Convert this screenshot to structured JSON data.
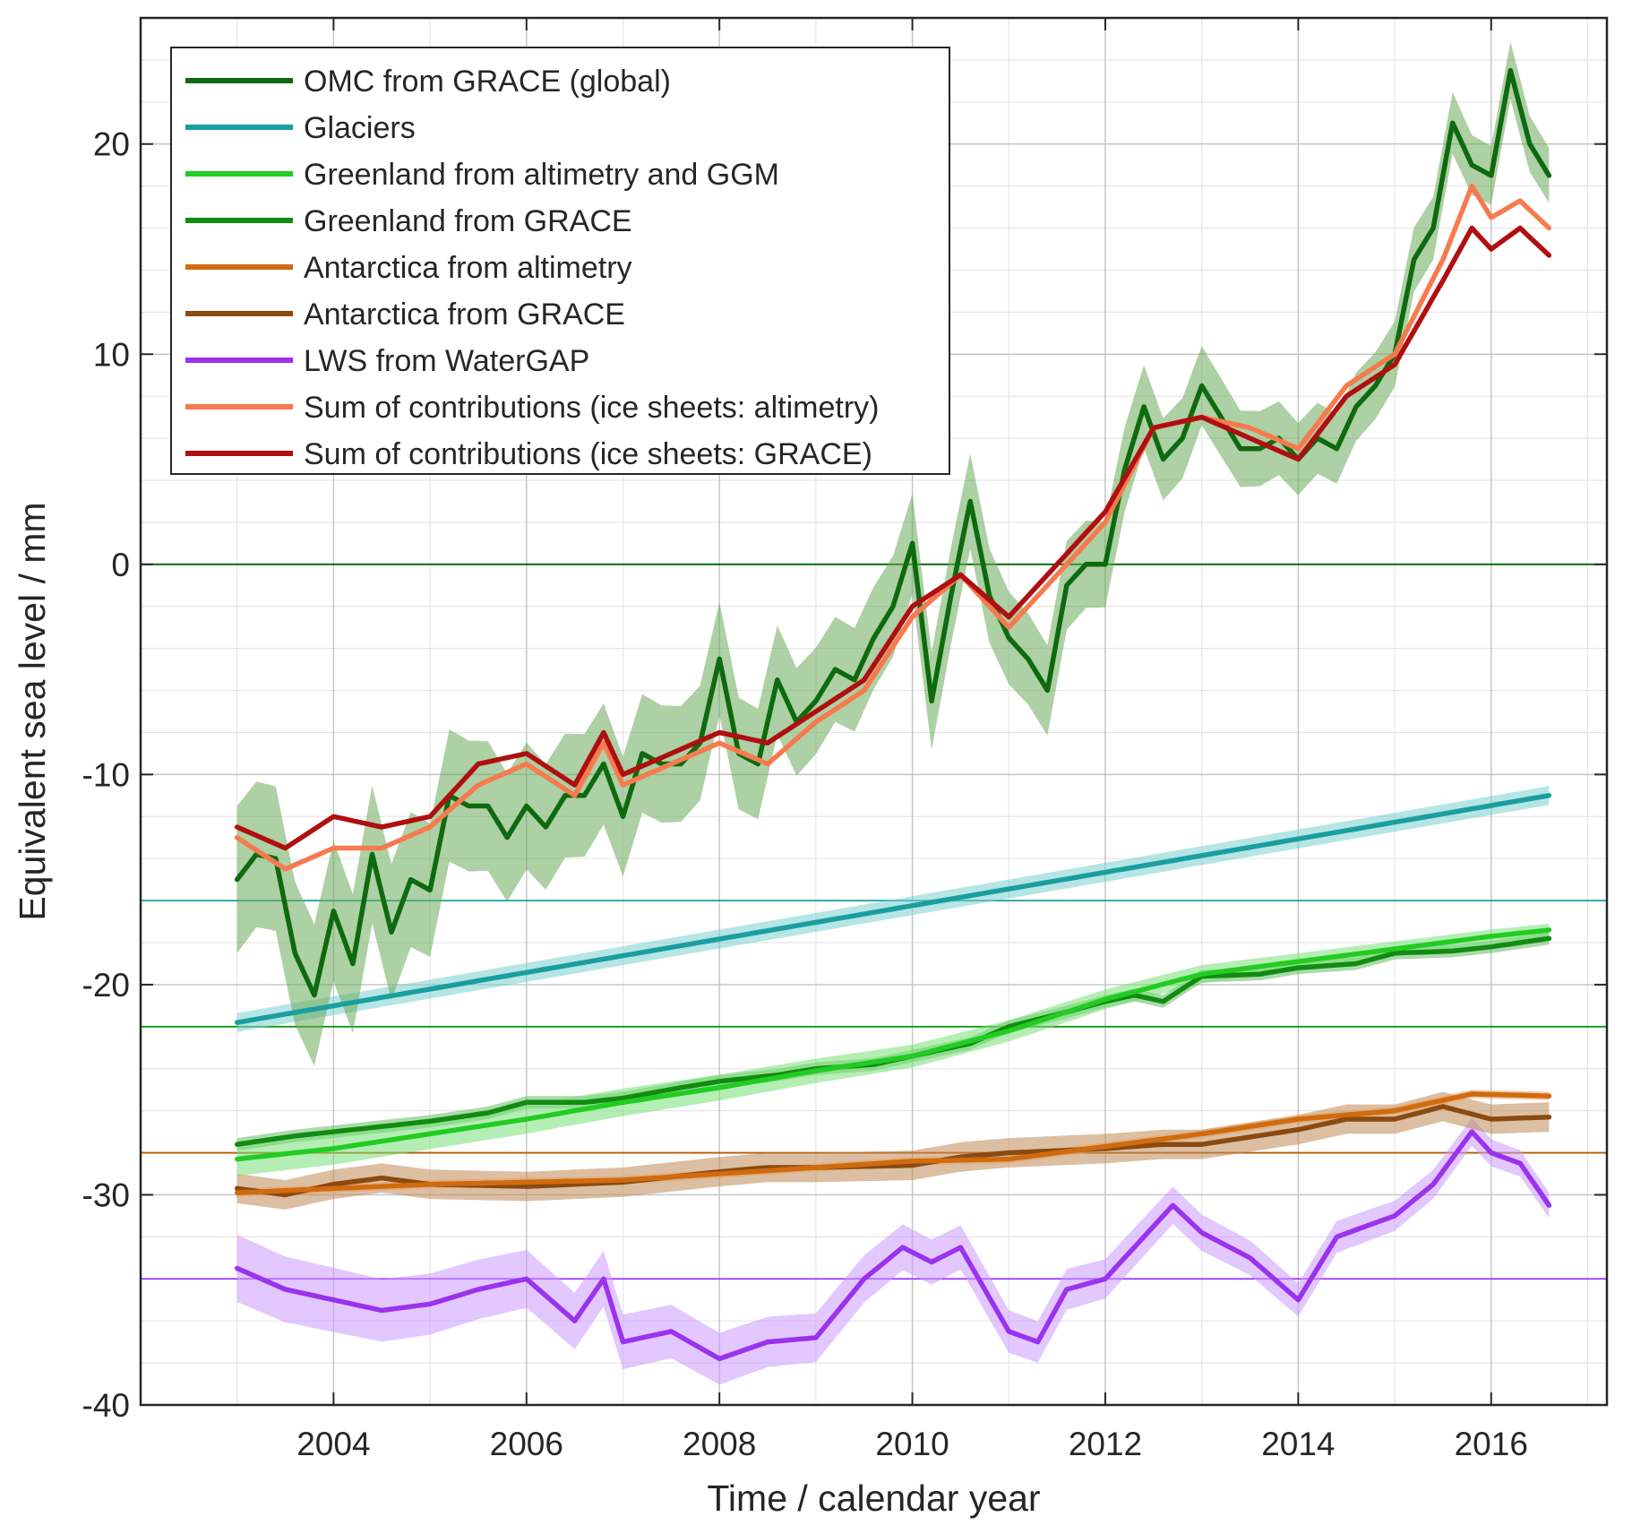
{
  "chart_data": {
    "type": "line",
    "xlabel": "Time / calendar year",
    "ylabel": "Equivalent sea level / mm",
    "xlim": [
      2002.0,
      2017.2
    ],
    "ylim": [
      -40,
      26
    ],
    "xticks": [
      2004,
      2006,
      2008,
      2010,
      2012,
      2014,
      2016
    ],
    "xtick_labels": [
      "2004",
      "2006",
      "2008",
      "2010",
      "2012",
      "2014",
      "2016"
    ],
    "yticks": [
      -40,
      -30,
      -20,
      -10,
      0,
      10,
      20
    ],
    "ytick_labels": [
      "-40",
      "-30",
      "-20",
      "-10",
      "0",
      "10",
      "20"
    ],
    "grid": true,
    "minor_grid": true,
    "legend_position": "top-left",
    "reference_lines": [
      {
        "y": 0,
        "color": "#006400"
      },
      {
        "y": -16,
        "color": "#1a9e9e"
      },
      {
        "y": -22,
        "color": "#119911"
      },
      {
        "y": -28,
        "color": "#b85a00"
      },
      {
        "y": -34,
        "color": "#9933ff"
      }
    ],
    "series": [
      {
        "name": "OMC from GRACE (global)",
        "color": "#0e6a0e",
        "band_color": "#6aaa5a",
        "band": [
          3.5,
          1.3
        ],
        "x": [
          2003.0,
          2003.2,
          2003.4,
          2003.6,
          2003.8,
          2004.0,
          2004.2,
          2004.4,
          2004.6,
          2004.8,
          2005.0,
          2005.2,
          2005.4,
          2005.6,
          2005.8,
          2006.0,
          2006.2,
          2006.4,
          2006.6,
          2006.8,
          2007.0,
          2007.2,
          2007.4,
          2007.6,
          2007.8,
          2008.0,
          2008.2,
          2008.4,
          2008.6,
          2008.8,
          2009.0,
          2009.2,
          2009.4,
          2009.6,
          2009.8,
          2010.0,
          2010.2,
          2010.4,
          2010.6,
          2010.8,
          2011.0,
          2011.2,
          2011.4,
          2011.6,
          2011.8,
          2012.0,
          2012.2,
          2012.4,
          2012.6,
          2012.8,
          2013.0,
          2013.2,
          2013.4,
          2013.6,
          2013.8,
          2014.0,
          2014.2,
          2014.4,
          2014.6,
          2014.8,
          2015.0,
          2015.2,
          2015.4,
          2015.6,
          2015.8,
          2016.0,
          2016.2,
          2016.4,
          2016.6
        ],
        "y": [
          -15.0,
          -13.8,
          -14.0,
          -18.5,
          -20.5,
          -16.5,
          -19.0,
          -13.8,
          -17.5,
          -15.0,
          -15.5,
          -11.0,
          -11.5,
          -11.5,
          -13.0,
          -11.5,
          -12.5,
          -11.0,
          -11.0,
          -9.5,
          -12.0,
          -9.0,
          -9.5,
          -9.5,
          -8.5,
          -4.5,
          -9.0,
          -9.5,
          -5.5,
          -7.5,
          -6.5,
          -5.0,
          -5.5,
          -3.5,
          -2.0,
          1.0,
          -6.5,
          -1.5,
          3.0,
          -1.5,
          -3.5,
          -4.5,
          -6.0,
          -1.0,
          0.0,
          0.0,
          4.5,
          7.5,
          5.0,
          6.0,
          8.5,
          7.0,
          5.5,
          5.5,
          6.0,
          5.0,
          6.0,
          5.5,
          7.5,
          8.5,
          10.0,
          14.5,
          16.0,
          21.0,
          19.0,
          18.5,
          23.5,
          20.0,
          18.5
        ]
      },
      {
        "name": "Glaciers",
        "color": "#1a9e9e",
        "band_color": "#7acfcf",
        "band": [
          0.45,
          0.45
        ],
        "x": [
          2003.0,
          2016.6
        ],
        "y": [
          -21.8,
          -11.0
        ]
      },
      {
        "name": "Greenland from altimetry and GGM",
        "color": "#22cc22",
        "band_color": "#77e077",
        "band": [
          0.8,
          0.3
        ],
        "x": [
          2003.0,
          2004.0,
          2005.0,
          2006.0,
          2007.0,
          2008.0,
          2009.0,
          2010.0,
          2011.0,
          2012.0,
          2013.0,
          2014.0,
          2015.0,
          2016.0,
          2016.6
        ],
        "y": [
          -28.3,
          -27.8,
          -27.1,
          -26.4,
          -25.6,
          -24.9,
          -24.1,
          -23.4,
          -22.2,
          -20.7,
          -19.5,
          -18.9,
          -18.3,
          -17.7,
          -17.4
        ]
      },
      {
        "name": "Greenland from GRACE",
        "color": "#118c11",
        "band_color": "#66bb66",
        "band": [
          0.3,
          0.3
        ],
        "x": [
          2003.0,
          2003.6,
          2004.0,
          2004.6,
          2005.0,
          2005.6,
          2006.0,
          2006.6,
          2007.0,
          2007.6,
          2008.0,
          2008.6,
          2009.0,
          2009.6,
          2010.0,
          2010.6,
          2011.0,
          2011.6,
          2012.0,
          2012.3,
          2012.6,
          2013.0,
          2013.6,
          2014.0,
          2014.6,
          2015.0,
          2015.6,
          2016.0,
          2016.6
        ],
        "y": [
          -27.6,
          -27.2,
          -27.0,
          -26.7,
          -26.5,
          -26.1,
          -25.6,
          -25.6,
          -25.4,
          -24.9,
          -24.6,
          -24.3,
          -24.0,
          -23.8,
          -23.4,
          -22.8,
          -22.0,
          -21.3,
          -20.8,
          -20.5,
          -20.8,
          -19.6,
          -19.5,
          -19.2,
          -19.0,
          -18.5,
          -18.4,
          -18.2,
          -17.8
        ]
      },
      {
        "name": "Antarctica from altimetry",
        "color": "#d06b10",
        "band_color": "#e8a060",
        "band": [
          0.2,
          0.2
        ],
        "x": [
          2003.0,
          2005.0,
          2007.0,
          2009.0,
          2010.0,
          2011.0,
          2012.0,
          2013.0,
          2014.0,
          2015.0,
          2015.8,
          2016.6
        ],
        "y": [
          -29.9,
          -29.5,
          -29.3,
          -28.7,
          -28.4,
          -28.3,
          -27.7,
          -27.1,
          -26.4,
          -26.0,
          -25.2,
          -25.3
        ]
      },
      {
        "name": "Antarctica from GRACE",
        "color": "#8a4a10",
        "band_color": "#c08a55",
        "band": [
          0.7,
          0.7
        ],
        "x": [
          2003.0,
          2003.5,
          2004.0,
          2004.5,
          2005.0,
          2006.0,
          2007.0,
          2008.0,
          2008.5,
          2009.0,
          2010.0,
          2010.5,
          2011.0,
          2012.0,
          2012.6,
          2013.0,
          2014.0,
          2014.5,
          2015.0,
          2015.5,
          2016.0,
          2016.6
        ],
        "y": [
          -29.7,
          -30.0,
          -29.5,
          -29.2,
          -29.5,
          -29.6,
          -29.4,
          -28.9,
          -28.7,
          -28.7,
          -28.6,
          -28.2,
          -28.0,
          -27.8,
          -27.6,
          -27.6,
          -26.9,
          -26.4,
          -26.4,
          -25.8,
          -26.4,
          -26.3
        ]
      },
      {
        "name": "LWS from WaterGAP",
        "color": "#9933ee",
        "band_color": "#cc99ff",
        "band": [
          1.6,
          0.6
        ],
        "x": [
          2003.0,
          2003.5,
          2004.0,
          2004.5,
          2005.0,
          2005.5,
          2006.0,
          2006.5,
          2006.8,
          2007.0,
          2007.5,
          2008.0,
          2008.5,
          2009.0,
          2009.5,
          2009.9,
          2010.2,
          2010.5,
          2011.0,
          2011.3,
          2011.6,
          2012.0,
          2012.4,
          2012.7,
          2013.0,
          2013.5,
          2014.0,
          2014.4,
          2014.7,
          2015.0,
          2015.4,
          2015.8,
          2016.0,
          2016.3,
          2016.6
        ],
        "y": [
          -33.5,
          -34.5,
          -35.0,
          -35.5,
          -35.2,
          -34.5,
          -34.0,
          -36.0,
          -34.0,
          -37.0,
          -36.5,
          -37.8,
          -37.0,
          -36.8,
          -34.0,
          -32.5,
          -33.2,
          -32.5,
          -36.5,
          -37.0,
          -34.5,
          -34.0,
          -32.0,
          -30.5,
          -31.8,
          -33.0,
          -35.0,
          -32.0,
          -31.5,
          -31.0,
          -29.5,
          -27.0,
          -28.0,
          -28.5,
          -30.5
        ]
      },
      {
        "name": "Sum of contributions (ice sheets: altimetry)",
        "color": "#f77a4f",
        "x": [
          2003.0,
          2003.5,
          2004.0,
          2004.5,
          2005.0,
          2005.5,
          2006.0,
          2006.5,
          2006.8,
          2007.0,
          2007.5,
          2008.0,
          2008.5,
          2009.0,
          2009.5,
          2010.0,
          2010.5,
          2011.0,
          2011.5,
          2012.0,
          2012.5,
          2013.0,
          2013.5,
          2014.0,
          2014.5,
          2015.0,
          2015.5,
          2015.8,
          2016.0,
          2016.3,
          2016.6
        ],
        "y": [
          -13.0,
          -14.5,
          -13.5,
          -13.5,
          -12.5,
          -10.5,
          -9.5,
          -11.0,
          -8.5,
          -10.5,
          -9.5,
          -8.5,
          -9.5,
          -7.5,
          -6.0,
          -2.5,
          -0.5,
          -3.0,
          -0.5,
          2.0,
          6.5,
          7.0,
          6.5,
          5.5,
          8.5,
          10.0,
          14.5,
          18.0,
          16.5,
          17.3,
          16.0
        ]
      },
      {
        "name": "Sum of contributions (ice sheets: GRACE)",
        "color": "#b00f0f",
        "x": [
          2003.0,
          2003.5,
          2004.0,
          2004.5,
          2005.0,
          2005.5,
          2006.0,
          2006.5,
          2006.8,
          2007.0,
          2007.5,
          2008.0,
          2008.5,
          2009.0,
          2009.5,
          2010.0,
          2010.5,
          2011.0,
          2011.5,
          2012.0,
          2012.5,
          2013.0,
          2013.5,
          2014.0,
          2014.5,
          2015.0,
          2015.5,
          2015.8,
          2016.0,
          2016.3,
          2016.6
        ],
        "y": [
          -12.5,
          -13.5,
          -12.0,
          -12.5,
          -12.0,
          -9.5,
          -9.0,
          -10.5,
          -8.0,
          -10.0,
          -9.0,
          -8.0,
          -8.5,
          -7.0,
          -5.5,
          -2.0,
          -0.5,
          -2.5,
          0.0,
          2.5,
          6.5,
          7.0,
          6.0,
          5.0,
          8.0,
          9.5,
          13.5,
          16.0,
          15.0,
          16.0,
          14.7
        ]
      }
    ]
  }
}
